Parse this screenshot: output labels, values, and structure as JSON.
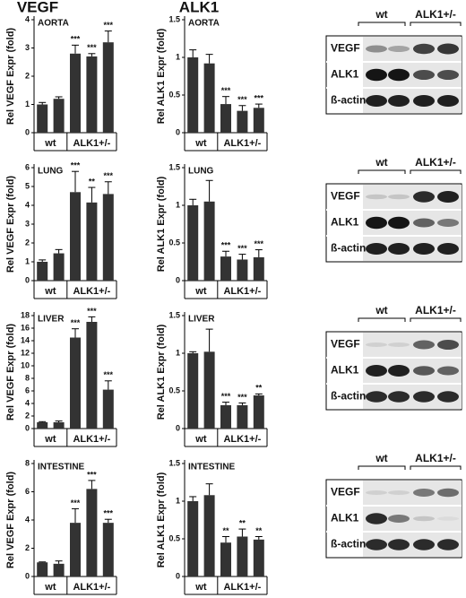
{
  "column_titles": [
    "VEGF",
    "ALK1"
  ],
  "chart_data": [
    {
      "type": "bar",
      "title": "AORTA",
      "ylabel": "Rel VEGF Expr (fold)",
      "categories": [
        null,
        null,
        null,
        null,
        null
      ],
      "group_labels": [
        "wt",
        "ALK1+/-"
      ],
      "values": [
        1.0,
        1.2,
        2.8,
        2.7,
        3.2
      ],
      "errors": [
        0.07,
        0.07,
        0.3,
        0.1,
        0.4
      ],
      "significance": [
        null,
        null,
        "***",
        "***",
        "***"
      ],
      "ylim": [
        0,
        4
      ],
      "yticks": [
        0,
        1,
        2,
        3,
        4
      ],
      "color": "#333333"
    },
    {
      "type": "bar",
      "title": "AORTA",
      "ylabel": "Rel ALK1 Expr (fold)",
      "categories": [
        null,
        null,
        null,
        null,
        null
      ],
      "group_labels": [
        "wt",
        "ALK1+/-"
      ],
      "values": [
        1.0,
        0.92,
        0.38,
        0.29,
        0.33
      ],
      "errors": [
        0.1,
        0.12,
        0.1,
        0.07,
        0.05
      ],
      "significance": [
        null,
        null,
        "***",
        "***",
        "***"
      ],
      "ylim": [
        0,
        1.5
      ],
      "yticks": [
        0,
        0.5,
        1,
        1.5
      ],
      "color": "#333333"
    },
    {
      "type": "bar",
      "title": "LUNG",
      "ylabel": "Rel VEGF Expr (fold)",
      "categories": [
        null,
        null,
        null,
        null,
        null
      ],
      "group_labels": [
        "wt",
        "ALK1+/-"
      ],
      "values": [
        1.0,
        1.45,
        4.7,
        4.15,
        4.6
      ],
      "errors": [
        0.1,
        0.2,
        1.1,
        0.8,
        0.65
      ],
      "significance": [
        null,
        null,
        "***",
        "**",
        "***"
      ],
      "ylim": [
        0,
        6
      ],
      "yticks": [
        0,
        1,
        2,
        3,
        4,
        5,
        6
      ],
      "color": "#333333"
    },
    {
      "type": "bar",
      "title": "LUNG",
      "ylabel": "Rel ALK1 Expr (fold)",
      "categories": [
        null,
        null,
        null,
        null,
        null
      ],
      "group_labels": [
        "wt",
        "ALK1+/-"
      ],
      "values": [
        1.0,
        1.05,
        0.32,
        0.28,
        0.31
      ],
      "errors": [
        0.08,
        0.28,
        0.07,
        0.07,
        0.1
      ],
      "significance": [
        null,
        null,
        "***",
        "***",
        "***"
      ],
      "ylim": [
        0,
        1.5
      ],
      "yticks": [
        0,
        0.5,
        1,
        1.5
      ],
      "color": "#333333"
    },
    {
      "type": "bar",
      "title": "LIVER",
      "ylabel": "Rel VEGF Expr (fold)",
      "categories": [
        null,
        null,
        null,
        null,
        null
      ],
      "group_labels": [
        "wt",
        "ALK1+/-"
      ],
      "values": [
        1.0,
        1.0,
        14.5,
        17.0,
        6.2
      ],
      "errors": [
        0.1,
        0.2,
        1.4,
        0.8,
        1.4
      ],
      "significance": [
        null,
        null,
        "***",
        "***",
        "***"
      ],
      "ylim": [
        0,
        18
      ],
      "yticks": [
        0,
        2,
        4,
        6,
        8,
        10,
        12,
        14,
        16,
        18
      ],
      "color": "#333333"
    },
    {
      "type": "bar",
      "title": "LIVER",
      "ylabel": "Rel ALK1 Expr (fold)",
      "categories": [
        null,
        null,
        null,
        null,
        null
      ],
      "group_labels": [
        "wt",
        "ALK1+/-"
      ],
      "values": [
        1.0,
        1.02,
        0.31,
        0.31,
        0.44
      ],
      "errors": [
        0.02,
        0.3,
        0.04,
        0.03,
        0.02
      ],
      "significance": [
        null,
        null,
        "***",
        "***",
        "**"
      ],
      "ylim": [
        0,
        1.5
      ],
      "yticks": [
        0,
        0.5,
        1,
        1.5
      ],
      "color": "#333333"
    },
    {
      "type": "bar",
      "title": "INTESTINE",
      "ylabel": "Rel VEGF Expr (fold)",
      "categories": [
        null,
        null,
        null,
        null,
        null
      ],
      "group_labels": [
        "wt",
        "ALK1+/-"
      ],
      "values": [
        1.0,
        0.9,
        3.8,
        6.2,
        3.8
      ],
      "errors": [
        0.03,
        0.2,
        1.0,
        0.6,
        0.25
      ],
      "significance": [
        null,
        null,
        "***",
        "***",
        "***"
      ],
      "ylim": [
        0,
        8
      ],
      "yticks": [
        0,
        2,
        4,
        6,
        8
      ],
      "color": "#333333"
    },
    {
      "type": "bar",
      "title": "INTESTINE",
      "ylabel": "Rel ALK1 Expr (fold)",
      "categories": [
        null,
        null,
        null,
        null,
        null
      ],
      "group_labels": [
        "wt",
        "ALK1+/-"
      ],
      "values": [
        1.0,
        1.08,
        0.45,
        0.53,
        0.49
      ],
      "errors": [
        0.06,
        0.15,
        0.08,
        0.1,
        0.04
      ],
      "significance": [
        null,
        null,
        "**",
        "**",
        "**"
      ],
      "ylim": [
        0,
        1.5
      ],
      "yticks": [
        0,
        0.5,
        1,
        1.5
      ],
      "color": "#333333"
    }
  ],
  "blots": [
    {
      "group_labels": [
        "wt",
        "ALK1+/-"
      ],
      "rows": [
        "VEGF",
        "ALK1",
        "ß-actin"
      ]
    },
    {
      "group_labels": [
        "wt",
        "ALK1+/-"
      ],
      "rows": [
        "VEGF",
        "ALK1",
        "ß-actin"
      ]
    },
    {
      "group_labels": [
        "wt",
        "ALK1+/-"
      ],
      "rows": [
        "VEGF",
        "ALK1",
        "ß-actin"
      ]
    },
    {
      "group_labels": [
        "wt",
        "ALK1+/-"
      ],
      "rows": [
        "VEGF",
        "ALK1",
        "ß-actin"
      ]
    }
  ]
}
